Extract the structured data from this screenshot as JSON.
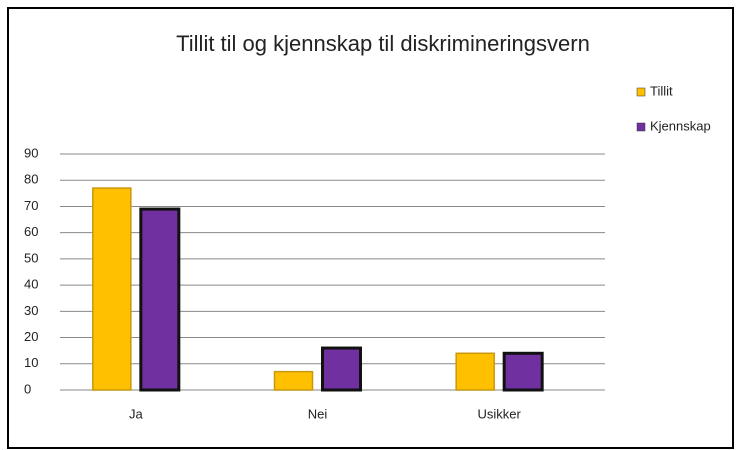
{
  "chart_data": {
    "type": "bar",
    "title": "Tillit til og kjennskap til diskrimineringsvern",
    "categories": [
      "Ja",
      "Nei",
      "Usikker"
    ],
    "series": [
      {
        "name": "Tillit",
        "color": "#ffc000",
        "values": [
          77,
          7,
          14
        ]
      },
      {
        "name": "Kjennskap",
        "color": "#7030a0",
        "values": [
          69,
          16,
          14
        ]
      }
    ],
    "ylim": [
      0,
      90
    ],
    "yticks": [
      0,
      10,
      20,
      30,
      40,
      50,
      60,
      70,
      80,
      90
    ],
    "grid": true,
    "legend": "right"
  }
}
